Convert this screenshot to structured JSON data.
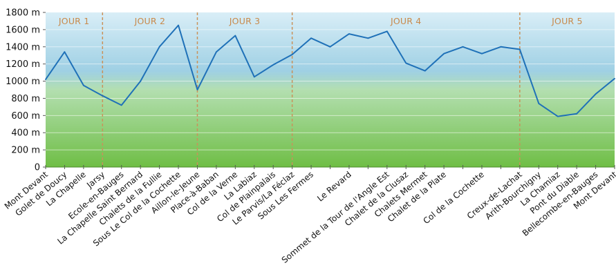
{
  "chart_data": {
    "type": "area",
    "title": "",
    "xlabel": "",
    "ylabel": "",
    "ylim": [
      0,
      1800
    ],
    "yticks": [
      {
        "value": 0,
        "label": "0"
      },
      {
        "value": 200,
        "label": "200 m"
      },
      {
        "value": 400,
        "label": "400 m"
      },
      {
        "value": 600,
        "label": "600 m"
      },
      {
        "value": 800,
        "label": "800 m"
      },
      {
        "value": 1000,
        "label": "1000 m"
      },
      {
        "value": 1200,
        "label": "1200 m"
      },
      {
        "value": 1400,
        "label": "1400 m"
      },
      {
        "value": 1600,
        "label": "1600 m"
      },
      {
        "value": 1800,
        "label": "1800 m"
      }
    ],
    "categories": [
      "Mont Devant",
      "Golet de Doucy",
      "La Chapelle",
      "Jarsy",
      "Ecole-en-Bauges",
      "La Chapelle Saint Bernard",
      "Chalets de la Fullie",
      "Sous Le Col de la Cochette",
      "Aillon-le-Jeune",
      "Place-à-Baban",
      "Col de la Verne",
      "La Labiaz",
      "Col de Plainpalais",
      "Le Parvis/La Féclaz",
      "Sous Les Fermes",
      "",
      "Le Revard",
      "",
      "Sommet de la Tour de l'Angle Est",
      "Chalet de la Clusaz",
      "Chalets Mermet",
      "Chalet de la Plate",
      "",
      "Col de la Cochette",
      "",
      "Creux-de-Lachat",
      "Arith-Bourchigny",
      "La Chamiaz",
      "Pont du Diable",
      "Bellecombe-en-Bauges",
      "Mont Devant"
    ],
    "values": [
      1020,
      1340,
      950,
      830,
      720,
      1000,
      1400,
      1650,
      900,
      1340,
      1530,
      1050,
      1190,
      1310,
      1500,
      1400,
      1550,
      1500,
      1580,
      1210,
      1120,
      1320,
      1400,
      1320,
      1400,
      1370,
      740,
      590,
      620,
      850,
      1030
    ],
    "stages": [
      {
        "label": "JOUR 1",
        "start": 0,
        "end": 3
      },
      {
        "label": "JOUR 2",
        "start": 3,
        "end": 8
      },
      {
        "label": "JOUR 3",
        "start": 8,
        "end": 13
      },
      {
        "label": "JOUR 4",
        "start": 13,
        "end": 25
      },
      {
        "label": "JOUR 5",
        "start": 25,
        "end": 30
      }
    ],
    "colors": {
      "line": "#1f71b8",
      "sky_top": "#d9eef7",
      "sky_bottom": "#9fd0e4",
      "ground_top": "#b3dfb0",
      "ground_bottom": "#6fbe45",
      "stage_divider": "#c9925a",
      "stage_label": "#c8894a"
    }
  }
}
